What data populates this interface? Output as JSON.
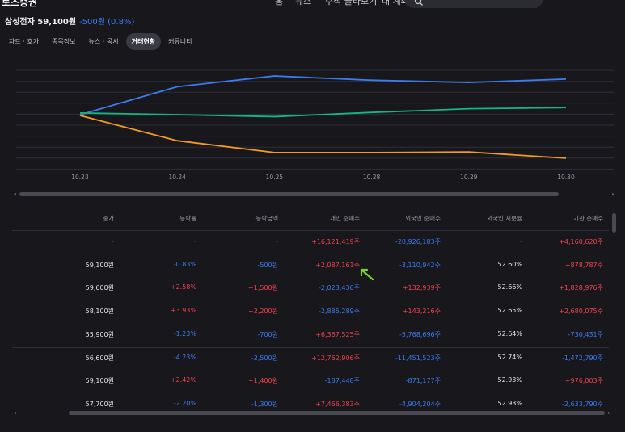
{
  "topbar": {
    "logo": "토스증권",
    "nav": [
      "홈",
      "뉴스",
      "주식 골라보기",
      "내 계좌"
    ]
  },
  "stock": {
    "name_price": "삼성전자 59,100원",
    "change": "-500원 (0.8%)"
  },
  "tabs": [
    {
      "label": "차트 · 호가",
      "active": false
    },
    {
      "label": "종목정보",
      "active": false
    },
    {
      "label": "뉴스 · 공시",
      "active": false
    },
    {
      "label": "거래현황",
      "active": true
    },
    {
      "label": "커뮤니티",
      "active": false
    }
  ],
  "chart_data": {
    "type": "line",
    "x": [
      "10.23",
      "10.24",
      "10.25",
      "10.28",
      "10.29",
      "10.30"
    ],
    "grid": true,
    "colors": {
      "blue": "#3d7cf0",
      "green": "#12b886",
      "orange": "#f59a23"
    },
    "series": [
      {
        "values": [
          0,
          9.9,
          13.7,
          12.2,
          11.4,
          12.6
        ],
        "color": "#3d7cf0"
      },
      {
        "values": [
          0.6,
          0,
          -0.7,
          0.8,
          2.1,
          2.5
        ],
        "color": "#12b886"
      },
      {
        "values": [
          -0.3,
          -9.2,
          -13.4,
          -13.4,
          -13.2,
          -15.4
        ],
        "color": "#f59a23"
      }
    ]
  },
  "table": {
    "columns": [
      "종가",
      "등락률",
      "등락금액",
      "개인 순매수",
      "외국인 순매수",
      "외국인 지분율",
      "기관 순매수"
    ],
    "rows": [
      [
        "-",
        "-",
        "-",
        "+16,121,419주",
        "-20,926,183주",
        "-",
        "+4,160,620주"
      ],
      [
        "59,100원",
        "-0.83%",
        "-500원",
        "+2,087,161주",
        "-3,110,942주",
        "52.60%",
        "+878,787주"
      ],
      [
        "59,600원",
        "+2.58%",
        "+1,500원",
        "-2,023,436주",
        "+132,939주",
        "52.66%",
        "+1,828,976주"
      ],
      [
        "58,100원",
        "+3.93%",
        "+2,200원",
        "-2,885,289주",
        "+143,216주",
        "52.65%",
        "+2,680,075주"
      ],
      [
        "55,900원",
        "-1.23%",
        "-700원",
        "+6,367,525주",
        "-5,768,696주",
        "52.64%",
        "-730,431주"
      ],
      [
        "56,600원",
        "-4.23%",
        "-2,500원",
        "+12,762,906주",
        "-11,451,523주",
        "52.74%",
        "-1,472,790주"
      ],
      [
        "59,100원",
        "+2.42%",
        "+1,400원",
        "-187,448주",
        "-871,177주",
        "52.93%",
        "+976,003주"
      ],
      [
        "57,700원",
        "-2.20%",
        "-1,300원",
        "+7,466,383주",
        "-4,904,204주",
        "52.93%",
        "-2,633,790주"
      ]
    ]
  },
  "colors": {
    "background": "#17171c",
    "up": "#f04452",
    "down": "#3d7cf0",
    "arrow": "#7ed321"
  },
  "icons": {
    "cursor": "green-arrow-icon",
    "search": "search-icon"
  }
}
